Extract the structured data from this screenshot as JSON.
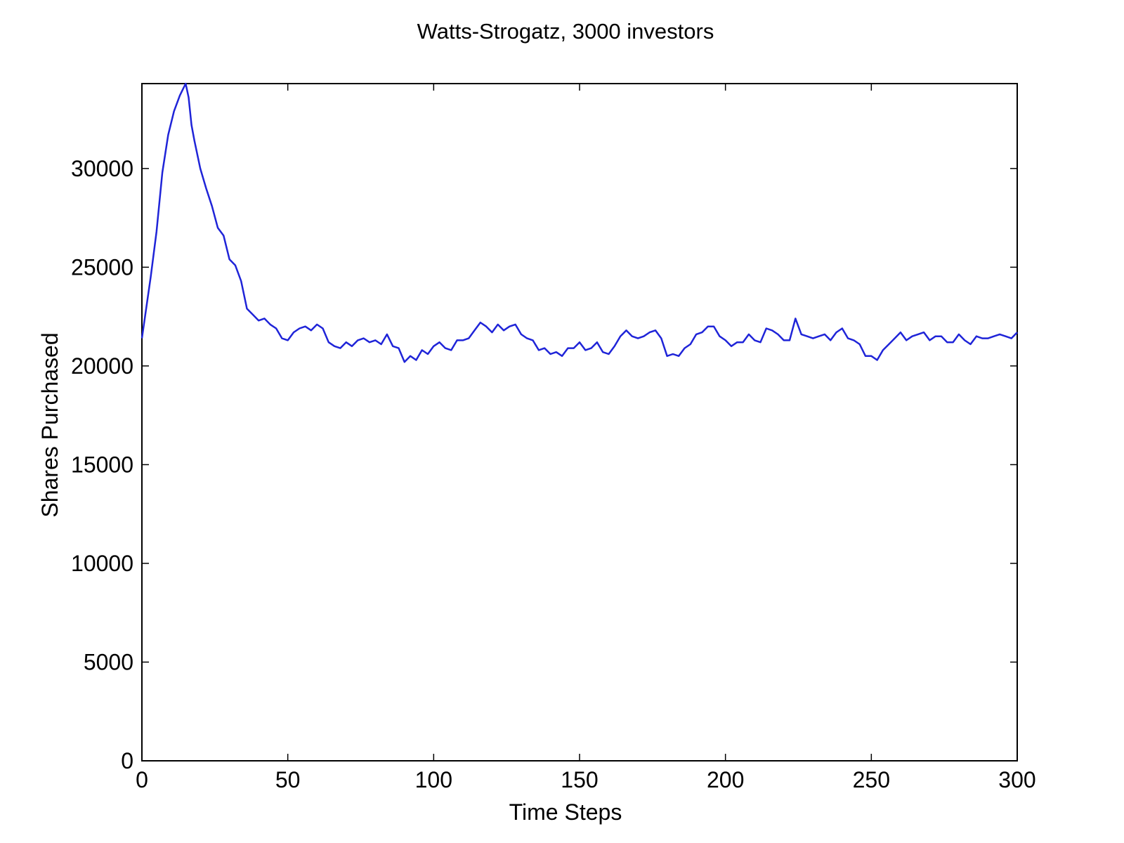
{
  "chart_data": {
    "type": "line",
    "title": "Watts-Strogatz, 3000 investors",
    "xlabel": "Time Steps",
    "ylabel": "Shares Purchased",
    "xlim": [
      0,
      300
    ],
    "ylim": [
      0,
      34300
    ],
    "xticks": [
      0,
      50,
      100,
      150,
      200,
      250,
      300
    ],
    "yticks": [
      0,
      5000,
      10000,
      15000,
      20000,
      25000,
      30000
    ],
    "grid": false,
    "line_color": "#1f24d8",
    "series": [
      {
        "x": [
          0,
          3,
          5,
          7,
          9,
          11,
          13,
          15,
          16,
          17,
          18,
          20,
          22,
          24,
          26,
          28,
          30,
          32,
          34,
          36,
          38,
          40,
          42,
          44,
          46,
          48,
          50,
          52,
          54,
          56,
          58,
          60,
          62,
          64,
          66,
          68,
          70,
          72,
          74,
          76,
          78,
          80,
          82,
          84,
          86,
          88,
          90,
          92,
          94,
          96,
          98,
          100,
          102,
          104,
          106,
          108,
          110,
          112,
          114,
          116,
          118,
          120,
          122,
          124,
          126,
          128,
          130,
          132,
          134,
          136,
          138,
          140,
          142,
          144,
          146,
          148,
          150,
          152,
          154,
          156,
          158,
          160,
          162,
          164,
          166,
          168,
          170,
          172,
          174,
          176,
          178,
          180,
          182,
          184,
          186,
          188,
          190,
          192,
          194,
          196,
          198,
          200,
          202,
          204,
          206,
          208,
          210,
          212,
          214,
          216,
          218,
          220,
          222,
          224,
          226,
          228,
          230,
          232,
          234,
          236,
          238,
          240,
          242,
          244,
          246,
          248,
          250,
          252,
          254,
          256,
          258,
          260,
          262,
          264,
          266,
          268,
          270,
          272,
          274,
          276,
          278,
          280,
          282,
          284,
          286,
          288,
          290,
          292,
          294,
          296,
          298,
          300
        ],
        "y": [
          21400,
          24500,
          26800,
          29800,
          31700,
          32900,
          33700,
          34300,
          33600,
          32200,
          31400,
          30000,
          29000,
          28100,
          27000,
          26600,
          25400,
          25100,
          24300,
          22900,
          22600,
          22300,
          22400,
          22100,
          21900,
          21400,
          21300,
          21700,
          21900,
          22000,
          21800,
          22100,
          21900,
          21200,
          21000,
          20900,
          21200,
          21000,
          21300,
          21400,
          21200,
          21300,
          21100,
          21600,
          21000,
          20900,
          20200,
          20500,
          20300,
          20800,
          20600,
          21000,
          21200,
          20900,
          20800,
          21300,
          21300,
          21400,
          21800,
          22200,
          22000,
          21700,
          22100,
          21800,
          22000,
          22100,
          21600,
          21400,
          21300,
          20800,
          20900,
          20600,
          20700,
          20500,
          20900,
          20900,
          21200,
          20800,
          20900,
          21200,
          20700,
          20600,
          21000,
          21500,
          21800,
          21500,
          21400,
          21500,
          21700,
          21800,
          21400,
          20500,
          20600,
          20500,
          20900,
          21100,
          21600,
          21700,
          22000,
          22000,
          21500,
          21300,
          21000,
          21200,
          21200,
          21600,
          21300,
          21200,
          21900,
          21800,
          21600,
          21300,
          21300,
          22400,
          21600,
          21500,
          21400,
          21500,
          21600,
          21300,
          21700,
          21900,
          21400,
          21300,
          21100,
          20500,
          20500,
          20300,
          20800,
          21100,
          21400,
          21700,
          21300,
          21500,
          21600,
          21700,
          21300,
          21500,
          21500,
          21200,
          21200,
          21600,
          21300,
          21100,
          21500,
          21400,
          21400,
          21500,
          21600,
          21500,
          21400,
          21700
        ]
      }
    ]
  }
}
